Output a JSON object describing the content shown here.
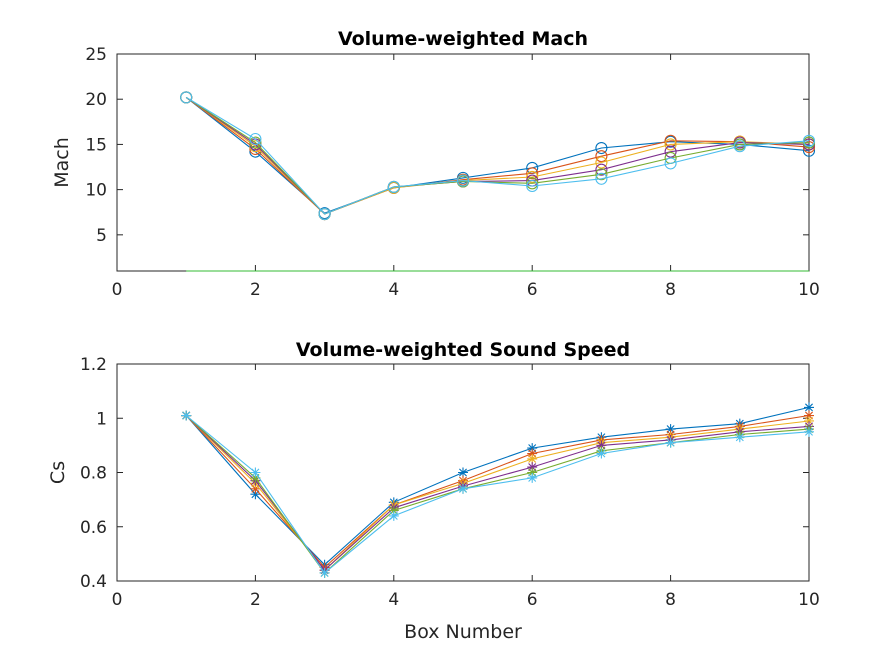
{
  "chart_data": [
    {
      "type": "line",
      "title": "Volume-weighted Mach",
      "xlabel": "",
      "ylabel": "Mach",
      "xlim": [
        0,
        10
      ],
      "ylim": [
        1,
        25
      ],
      "xticks": [
        0,
        2,
        4,
        6,
        8,
        10
      ],
      "yticks": [
        5,
        10,
        15,
        20,
        25
      ],
      "marker": "circle",
      "grid": false,
      "series": [
        {
          "color": "#0072bd",
          "x": [
            1,
            2,
            3,
            4,
            5,
            6,
            7,
            8,
            9,
            10
          ],
          "values": [
            20.2,
            14.2,
            7.4,
            10.2,
            11.3,
            12.4,
            14.6,
            15.3,
            15.0,
            14.3
          ]
        },
        {
          "color": "#d95319",
          "x": [
            1,
            2,
            3,
            4,
            5,
            6,
            7,
            8,
            9,
            10
          ],
          "values": [
            20.2,
            14.5,
            7.3,
            10.2,
            11.1,
            11.8,
            13.7,
            15.4,
            15.3,
            14.7
          ]
        },
        {
          "color": "#edb120",
          "x": [
            1,
            2,
            3,
            4,
            5,
            6,
            7,
            8,
            9,
            10
          ],
          "values": [
            20.2,
            14.8,
            7.3,
            10.2,
            11.0,
            11.4,
            13.0,
            15.0,
            15.3,
            15.0
          ]
        },
        {
          "color": "#7e2f8e",
          "x": [
            1,
            2,
            3,
            4,
            5,
            6,
            7,
            8,
            9,
            10
          ],
          "values": [
            20.2,
            15.0,
            7.3,
            10.3,
            10.9,
            11.0,
            12.2,
            14.2,
            15.2,
            15.0
          ]
        },
        {
          "color": "#77ac30",
          "x": [
            1,
            2,
            3,
            4,
            5,
            6,
            7,
            8,
            9,
            10
          ],
          "values": [
            20.2,
            15.2,
            7.3,
            10.3,
            10.9,
            10.7,
            11.7,
            13.5,
            15.0,
            15.2
          ]
        },
        {
          "color": "#4dbeee",
          "x": [
            1,
            2,
            3,
            4,
            5,
            6,
            7,
            8,
            9,
            10
          ],
          "values": [
            20.2,
            15.6,
            7.3,
            10.3,
            11.0,
            10.4,
            11.2,
            12.9,
            14.8,
            15.4
          ]
        },
        {
          "color": "#33bb33",
          "x": [
            1,
            10
          ],
          "values": [
            1,
            1
          ],
          "marker": "none"
        }
      ]
    },
    {
      "type": "line",
      "title": "Volume-weighted Sound Speed",
      "xlabel": "Box Number",
      "ylabel": "Cs",
      "xlim": [
        0,
        10
      ],
      "ylim": [
        0.4,
        1.2
      ],
      "xticks": [
        0,
        2,
        4,
        6,
        8,
        10
      ],
      "yticks": [
        0.4,
        0.6,
        0.8,
        1,
        1.2
      ],
      "marker": "asterisk",
      "grid": false,
      "series": [
        {
          "color": "#0072bd",
          "x": [
            1,
            2,
            3,
            4,
            5,
            6,
            7,
            8,
            9,
            10
          ],
          "values": [
            1.01,
            0.72,
            0.46,
            0.69,
            0.8,
            0.89,
            0.93,
            0.96,
            0.98,
            1.04
          ]
        },
        {
          "color": "#d95319",
          "x": [
            1,
            2,
            3,
            4,
            5,
            6,
            7,
            8,
            9,
            10
          ],
          "values": [
            1.01,
            0.74,
            0.45,
            0.68,
            0.77,
            0.87,
            0.92,
            0.94,
            0.97,
            1.01
          ]
        },
        {
          "color": "#edb120",
          "x": [
            1,
            2,
            3,
            4,
            5,
            6,
            7,
            8,
            9,
            10
          ],
          "values": [
            1.01,
            0.76,
            0.44,
            0.68,
            0.76,
            0.85,
            0.91,
            0.93,
            0.96,
            0.99
          ]
        },
        {
          "color": "#7e2f8e",
          "x": [
            1,
            2,
            3,
            4,
            5,
            6,
            7,
            8,
            9,
            10
          ],
          "values": [
            1.01,
            0.77,
            0.44,
            0.67,
            0.75,
            0.82,
            0.9,
            0.92,
            0.95,
            0.97
          ]
        },
        {
          "color": "#77ac30",
          "x": [
            1,
            2,
            3,
            4,
            5,
            6,
            7,
            8,
            9,
            10
          ],
          "values": [
            1.01,
            0.78,
            0.43,
            0.66,
            0.74,
            0.8,
            0.88,
            0.91,
            0.94,
            0.96
          ]
        },
        {
          "color": "#4dbeee",
          "x": [
            1,
            2,
            3,
            4,
            5,
            6,
            7,
            8,
            9,
            10
          ],
          "values": [
            1.01,
            0.8,
            0.43,
            0.64,
            0.74,
            0.78,
            0.87,
            0.91,
            0.93,
            0.95
          ]
        }
      ]
    }
  ]
}
